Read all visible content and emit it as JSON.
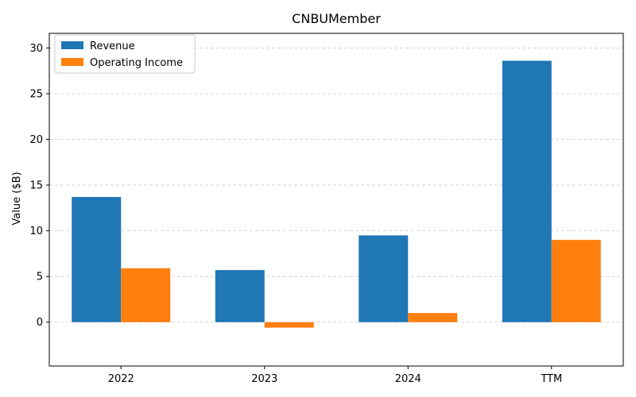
{
  "chart_data": {
    "type": "bar",
    "title": "CNBUMember",
    "xlabel": "",
    "ylabel": "Value ($B)",
    "categories": [
      "2022",
      "2023",
      "2024",
      "TTM"
    ],
    "series": [
      {
        "name": "Revenue",
        "color": "#1f77b4",
        "values": [
          13.7,
          5.7,
          9.5,
          28.6
        ]
      },
      {
        "name": "Operating Income",
        "color": "#ff7f0e",
        "values": [
          5.9,
          -0.6,
          1.0,
          9.0
        ]
      }
    ],
    "ylim": [
      -4.8,
      31.6
    ],
    "yticks": [
      0,
      5,
      10,
      15,
      20,
      25,
      30
    ],
    "grid": true,
    "legend_position": "top-left"
  }
}
